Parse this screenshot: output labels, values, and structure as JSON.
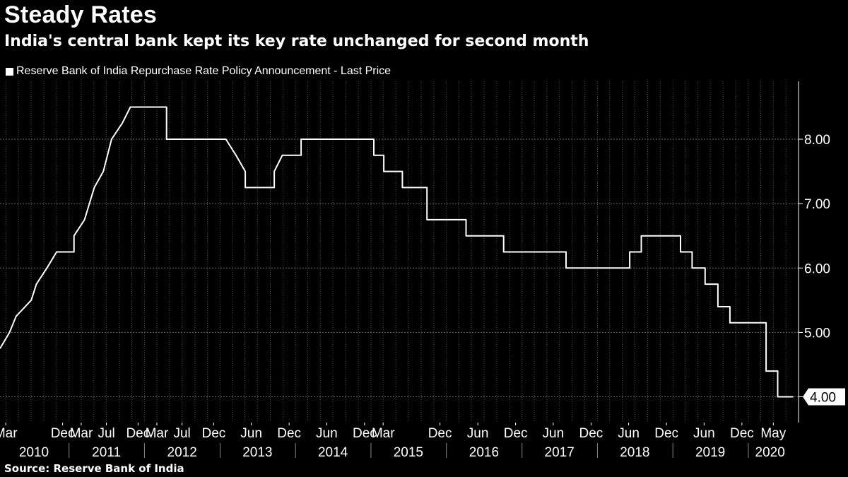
{
  "header": {
    "title": "Steady Rates",
    "subtitle": "India's central bank kept its key rate unchanged for second month"
  },
  "footer": {
    "source": "Source: Reserve Bank of India"
  },
  "colors": {
    "background": "#000000",
    "line": "#ffffff",
    "grid": "#555555",
    "text": "#ffffff"
  },
  "chart_data": {
    "type": "line",
    "title": "Steady Rates",
    "subtitle": "India's central bank kept its key rate unchanged for second month",
    "xlabel": "",
    "ylabel": "",
    "ylim": [
      3.6,
      8.9
    ],
    "y_ticks": [
      "4.00",
      "5.00",
      "6.00",
      "7.00",
      "8.00"
    ],
    "y_tick_values": [
      4,
      5,
      6,
      7,
      8
    ],
    "last_value_label": "4.00",
    "legend_position": "top-left",
    "grid": true,
    "x_ticks": [
      {
        "label": "Mar",
        "date": "2010-03-01"
      },
      {
        "label": "Dec",
        "date": "2010-12-01"
      },
      {
        "label": "Mar",
        "date": "2011-03-01"
      },
      {
        "label": "Jul",
        "date": "2011-07-01"
      },
      {
        "label": "Dec",
        "date": "2011-12-01"
      },
      {
        "label": "Mar",
        "date": "2012-03-01"
      },
      {
        "label": "Jul",
        "date": "2012-07-01"
      },
      {
        "label": "Dec",
        "date": "2012-12-01"
      },
      {
        "label": "Jun",
        "date": "2013-06-01"
      },
      {
        "label": "Dec",
        "date": "2013-12-01"
      },
      {
        "label": "Jun",
        "date": "2014-06-01"
      },
      {
        "label": "Dec",
        "date": "2014-12-01"
      },
      {
        "label": "Mar",
        "date": "2015-03-01"
      },
      {
        "label": "Dec",
        "date": "2015-12-01"
      },
      {
        "label": "Jun",
        "date": "2016-06-01"
      },
      {
        "label": "Dec",
        "date": "2016-12-01"
      },
      {
        "label": "Jun",
        "date": "2017-06-01"
      },
      {
        "label": "Dec",
        "date": "2017-12-01"
      },
      {
        "label": "Jun",
        "date": "2018-06-01"
      },
      {
        "label": "Dec",
        "date": "2018-12-01"
      },
      {
        "label": "Jun",
        "date": "2019-06-01"
      },
      {
        "label": "Dec",
        "date": "2019-12-01"
      },
      {
        "label": "May",
        "date": "2020-05-01"
      }
    ],
    "year_labels": [
      {
        "label": "2010",
        "date": "2010-07-15"
      },
      {
        "label": "2011",
        "date": "2011-07-01"
      },
      {
        "label": "2012",
        "date": "2012-07-01"
      },
      {
        "label": "2013",
        "date": "2013-07-01"
      },
      {
        "label": "2014",
        "date": "2014-07-01"
      },
      {
        "label": "2015",
        "date": "2015-07-01"
      },
      {
        "label": "2016",
        "date": "2016-07-01"
      },
      {
        "label": "2017",
        "date": "2017-07-01"
      },
      {
        "label": "2018",
        "date": "2018-07-01"
      },
      {
        "label": "2019",
        "date": "2019-07-01"
      },
      {
        "label": "2020",
        "date": "2020-04-15"
      }
    ],
    "x_range": [
      "2010-02-01",
      "2020-08-31"
    ],
    "series": [
      {
        "name": "Reserve Bank of India Repurchase Rate Policy Announcement - Last Price",
        "points": [
          [
            "2010-02-01",
            4.75
          ],
          [
            "2010-03-19",
            5.0
          ],
          [
            "2010-04-20",
            5.25
          ],
          [
            "2010-07-02",
            5.5
          ],
          [
            "2010-07-27",
            5.75
          ],
          [
            "2010-09-16",
            6.0
          ],
          [
            "2010-11-02",
            6.25
          ],
          [
            "2011-01-25",
            6.25
          ],
          [
            "2011-01-25",
            6.5
          ],
          [
            "2011-03-17",
            6.75
          ],
          [
            "2011-05-03",
            7.25
          ],
          [
            "2011-06-16",
            7.5
          ],
          [
            "2011-07-26",
            8.0
          ],
          [
            "2011-09-16",
            8.25
          ],
          [
            "2011-10-25",
            8.5
          ],
          [
            "2012-04-17",
            8.5
          ],
          [
            "2012-04-17",
            8.0
          ],
          [
            "2013-01-29",
            8.0
          ],
          [
            "2013-03-19",
            7.75
          ],
          [
            "2013-05-03",
            7.5
          ],
          [
            "2013-05-03",
            7.25
          ],
          [
            "2013-09-20",
            7.25
          ],
          [
            "2013-09-20",
            7.5
          ],
          [
            "2013-10-29",
            7.75
          ],
          [
            "2014-01-28",
            7.75
          ],
          [
            "2014-01-28",
            8.0
          ],
          [
            "2015-01-15",
            8.0
          ],
          [
            "2015-01-15",
            7.75
          ],
          [
            "2015-03-04",
            7.75
          ],
          [
            "2015-03-04",
            7.5
          ],
          [
            "2015-06-02",
            7.5
          ],
          [
            "2015-06-02",
            7.25
          ],
          [
            "2015-09-29",
            7.25
          ],
          [
            "2015-09-29",
            6.75
          ],
          [
            "2016-04-05",
            6.75
          ],
          [
            "2016-04-05",
            6.5
          ],
          [
            "2016-10-04",
            6.5
          ],
          [
            "2016-10-04",
            6.25
          ],
          [
            "2017-08-02",
            6.25
          ],
          [
            "2017-08-02",
            6.0
          ],
          [
            "2018-06-06",
            6.0
          ],
          [
            "2018-06-06",
            6.25
          ],
          [
            "2018-08-01",
            6.25
          ],
          [
            "2018-08-01",
            6.5
          ],
          [
            "2019-02-07",
            6.5
          ],
          [
            "2019-02-07",
            6.25
          ],
          [
            "2019-04-04",
            6.25
          ],
          [
            "2019-04-04",
            6.0
          ],
          [
            "2019-06-06",
            6.0
          ],
          [
            "2019-06-06",
            5.75
          ],
          [
            "2019-08-07",
            5.75
          ],
          [
            "2019-08-07",
            5.4
          ],
          [
            "2019-10-04",
            5.4
          ],
          [
            "2019-10-04",
            5.15
          ],
          [
            "2020-03-27",
            5.15
          ],
          [
            "2020-03-27",
            4.4
          ],
          [
            "2020-05-22",
            4.4
          ],
          [
            "2020-05-22",
            4.0
          ],
          [
            "2020-08-06",
            4.0
          ]
        ]
      }
    ]
  }
}
